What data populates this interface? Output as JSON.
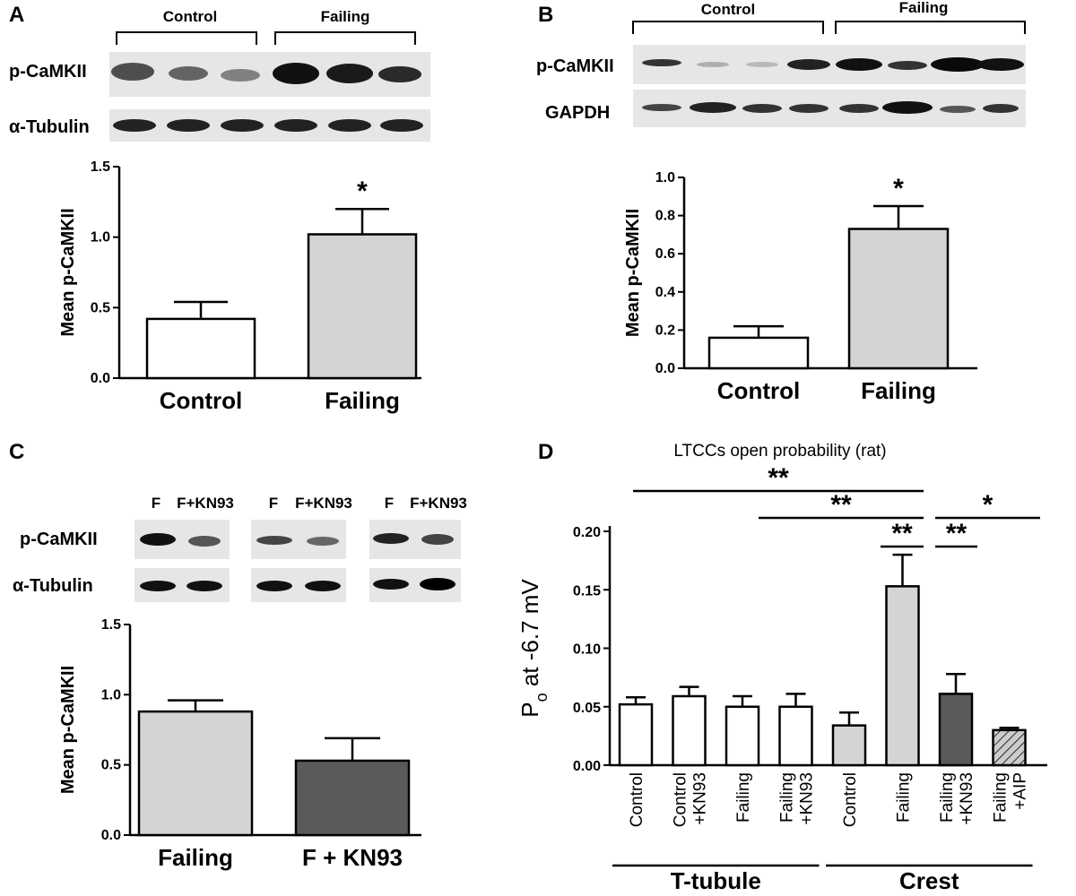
{
  "colors": {
    "control": "#ffffff",
    "failing": "#d4d4d4",
    "kn93": "#5a5a5a",
    "aip": "#cccccc",
    "blot_bg": "#e6e6e6",
    "band": "#1a1a1a"
  },
  "panels": {
    "A": {
      "letter": "A",
      "groups": [
        "Control",
        "Failing"
      ],
      "blot_rows": [
        "p-CaMKII",
        "α-Tubulin"
      ]
    },
    "B": {
      "letter": "B",
      "groups": [
        "Control",
        "Failing"
      ],
      "blot_rows": [
        "p-CaMKII",
        "GAPDH"
      ]
    },
    "C": {
      "letter": "C",
      "lane_labels": [
        "F",
        "F+KN93",
        "F",
        "F+KN93",
        "F",
        "F+KN93"
      ],
      "blot_rows": [
        "p-CaMKII",
        "α-Tubulin"
      ]
    },
    "D": {
      "letter": "D",
      "title": "LTCCs open probability (rat)",
      "groups": [
        "T-tubule",
        "Crest"
      ]
    }
  },
  "chart_data": [
    {
      "id": "A",
      "type": "bar",
      "categories": [
        "Control",
        "Failing"
      ],
      "values": [
        0.42,
        1.02
      ],
      "errors": [
        0.12,
        0.18
      ],
      "ylabel": "Mean p-CaMKII",
      "ylim": [
        0,
        1.5
      ],
      "yticks": [
        "0.0",
        "0.5",
        "1.0",
        "1.5"
      ],
      "annotations": [
        {
          "text": "*",
          "category": "Failing"
        }
      ]
    },
    {
      "id": "B",
      "type": "bar",
      "categories": [
        "Control",
        "Failing"
      ],
      "values": [
        0.16,
        0.73
      ],
      "errors": [
        0.06,
        0.12
      ],
      "ylabel": "Mean p-CaMKII",
      "ylim": [
        0,
        1.0
      ],
      "yticks": [
        "0.0",
        "0.2",
        "0.4",
        "0.6",
        "0.8",
        "1.0"
      ],
      "annotations": [
        {
          "text": "*",
          "category": "Failing"
        }
      ]
    },
    {
      "id": "C",
      "type": "bar",
      "categories": [
        "Failing",
        "F + KN93"
      ],
      "values": [
        0.88,
        0.53
      ],
      "errors": [
        0.08,
        0.16
      ],
      "ylabel": "Mean p-CaMKII",
      "ylim": [
        0,
        1.5
      ],
      "yticks": [
        "0.0",
        "0.5",
        "1.0",
        "1.5"
      ]
    },
    {
      "id": "D",
      "type": "bar",
      "categories": [
        "Control",
        "Control\n+KN93",
        "Failing",
        "Failing\n+KN93",
        "Control",
        "Failing",
        "Failing\n+KN93",
        "Failing\n+AIP"
      ],
      "values": [
        0.052,
        0.059,
        0.05,
        0.05,
        0.034,
        0.153,
        0.061,
        0.03
      ],
      "errors": [
        0.006,
        0.008,
        0.009,
        0.011,
        0.011,
        0.027,
        0.017,
        0.002
      ],
      "ylabel": "Po at -6.7 mV",
      "ylim": [
        0,
        0.2
      ],
      "yticks": [
        "0.00",
        "0.05",
        "0.10",
        "0.15",
        "0.20"
      ],
      "groups": [
        {
          "name": "T-tubule",
          "range": [
            0,
            3
          ]
        },
        {
          "name": "Crest",
          "range": [
            4,
            7
          ]
        }
      ],
      "significance": [
        {
          "from": 0,
          "to": 5,
          "text": "**"
        },
        {
          "from": 2,
          "to": 5,
          "text": "**"
        },
        {
          "from": 4,
          "to": 5,
          "text": "**"
        },
        {
          "from": 5,
          "to": 6,
          "text": "**"
        },
        {
          "from": 5,
          "to": 7,
          "text": "*"
        }
      ]
    }
  ]
}
